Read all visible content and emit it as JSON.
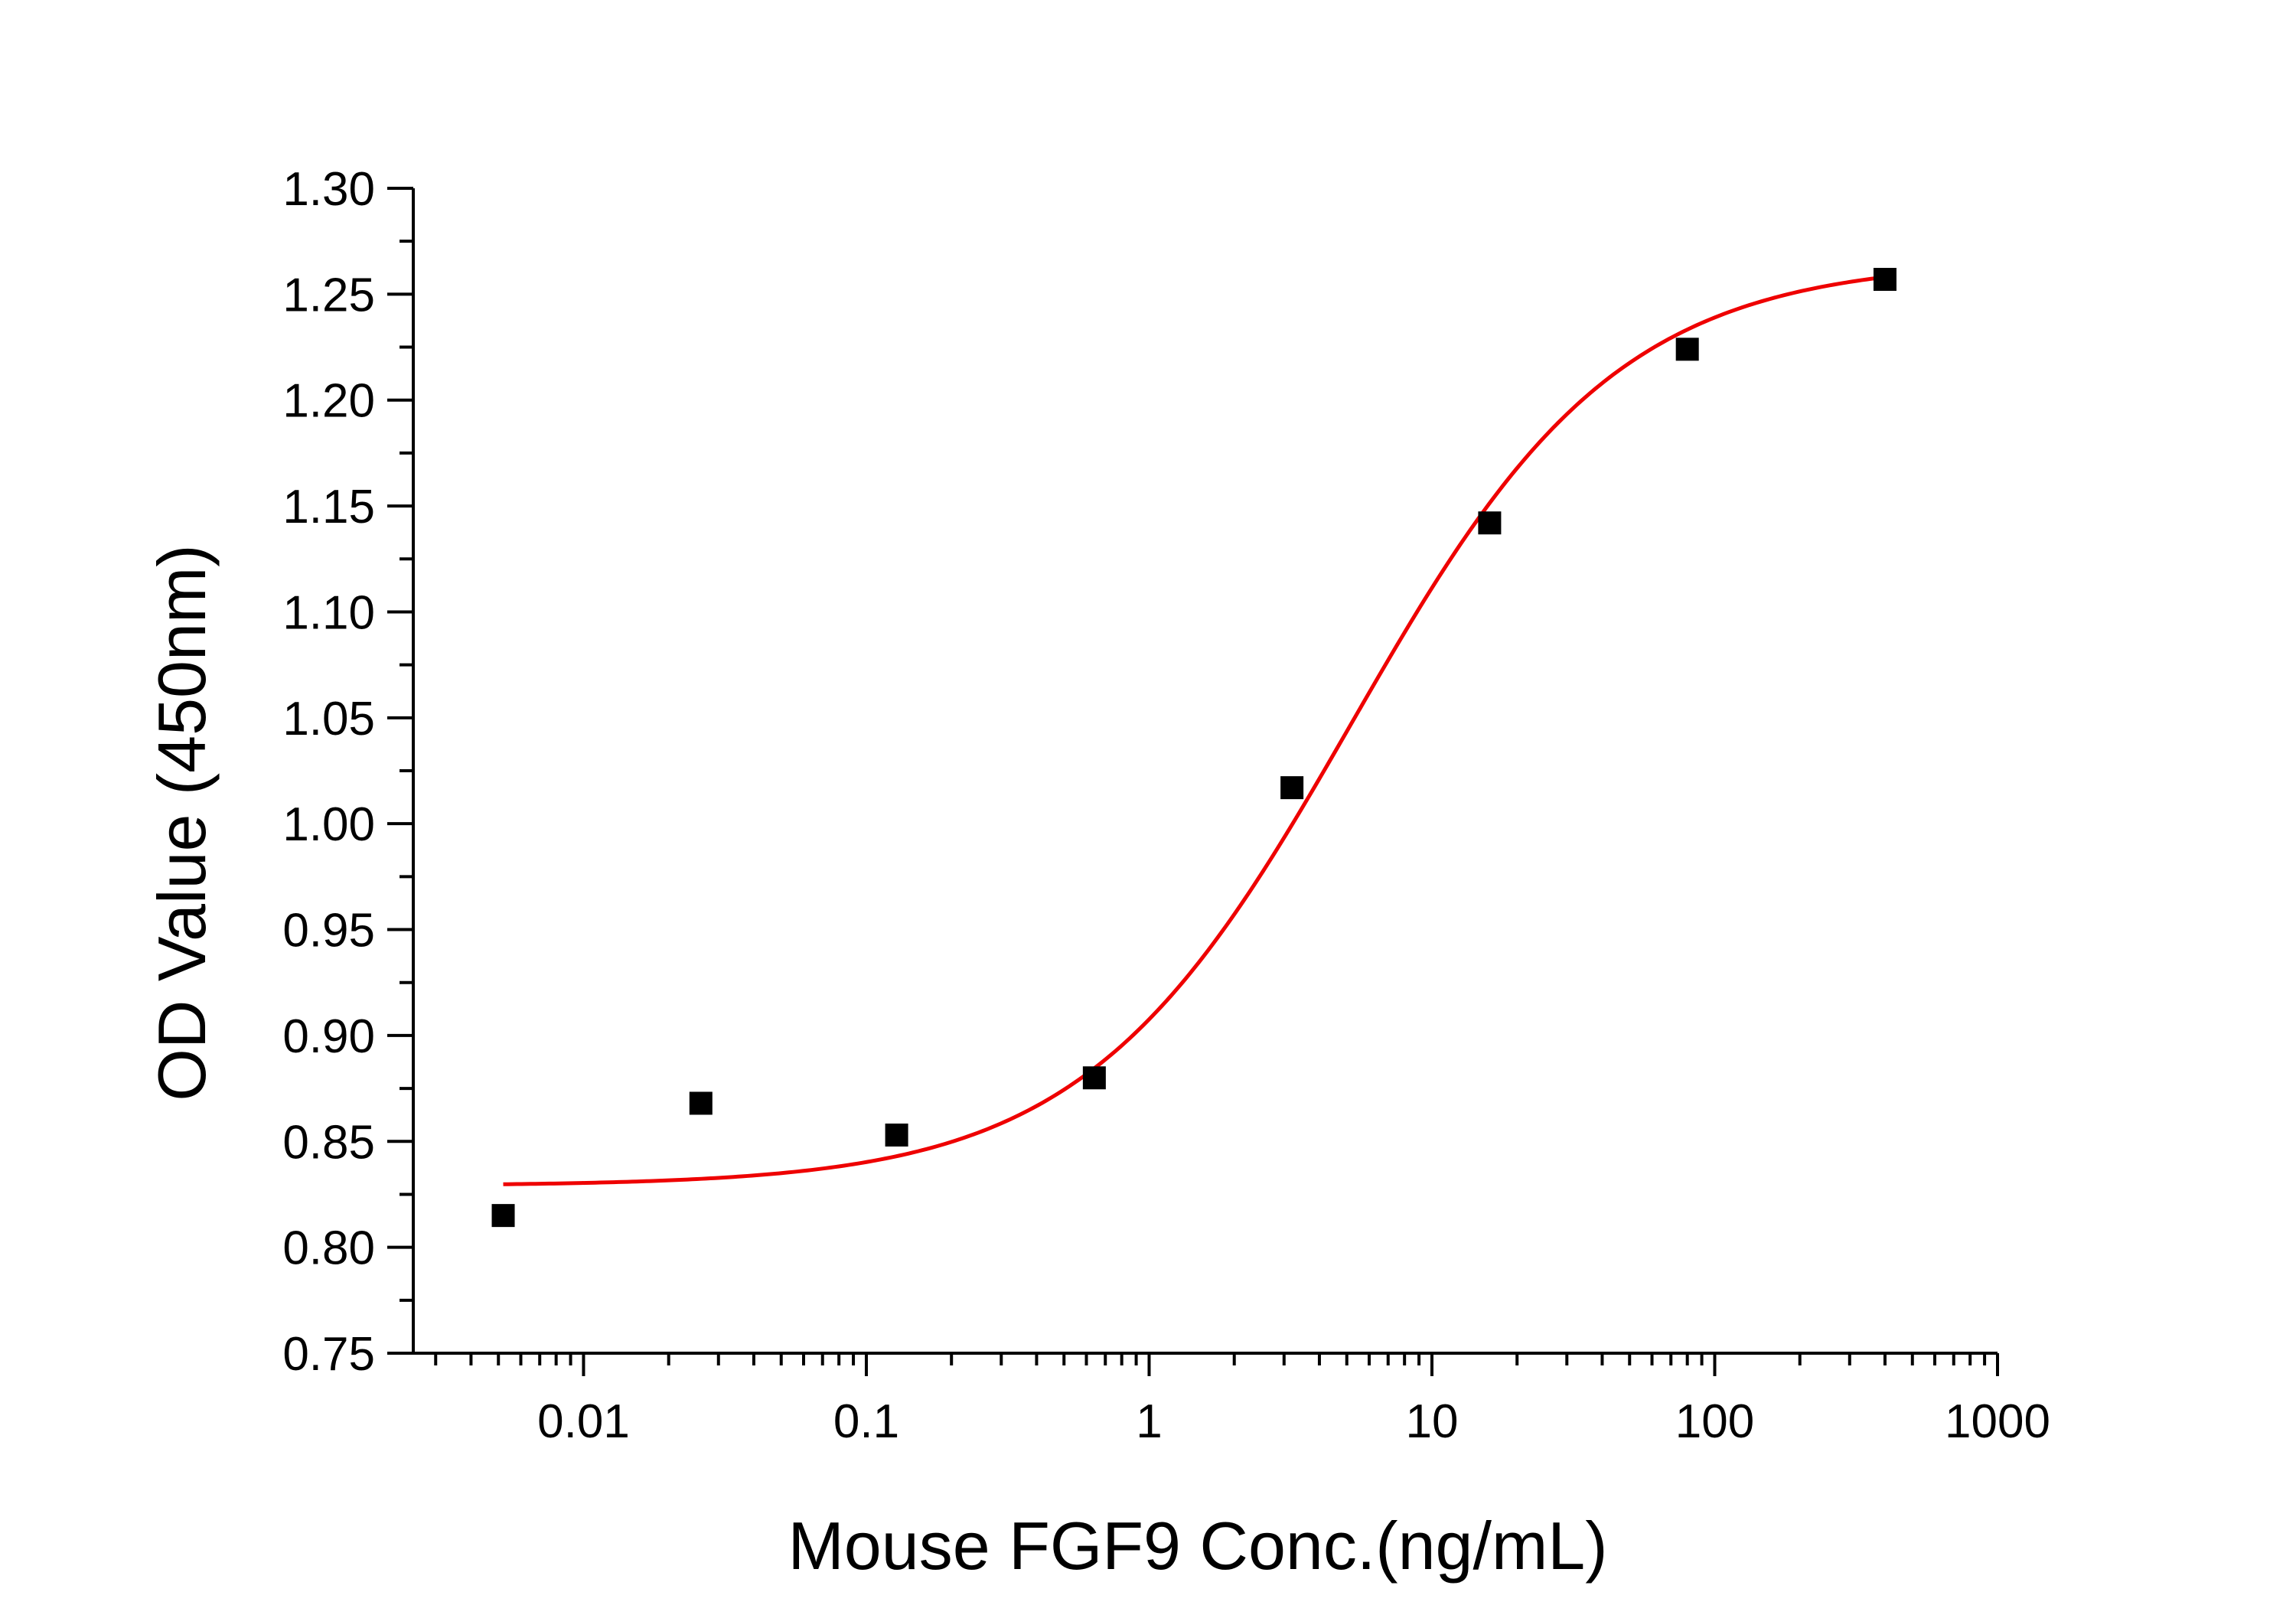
{
  "chart_data": {
    "type": "scatter",
    "title": "",
    "xlabel": "Mouse FGF9 Conc.(ng/mL)",
    "ylabel": "OD Value (450nm)",
    "x_scale": "log",
    "xlim": [
      0.0025,
      1000
    ],
    "ylim": [
      0.75,
      1.3
    ],
    "x_ticks": [
      {
        "value": 0.01,
        "label": "0.01"
      },
      {
        "value": 0.1,
        "label": "0.1"
      },
      {
        "value": 1,
        "label": "1"
      },
      {
        "value": 10,
        "label": "10"
      },
      {
        "value": 100,
        "label": "100"
      },
      {
        "value": 1000,
        "label": "1000"
      }
    ],
    "y_ticks": [
      {
        "value": 0.75,
        "label": "0.75"
      },
      {
        "value": 0.8,
        "label": "0.80"
      },
      {
        "value": 0.85,
        "label": "0.85"
      },
      {
        "value": 0.9,
        "label": "0.90"
      },
      {
        "value": 0.95,
        "label": "0.95"
      },
      {
        "value": 1.0,
        "label": "1.00"
      },
      {
        "value": 1.05,
        "label": "1.05"
      },
      {
        "value": 1.1,
        "label": "1.10"
      },
      {
        "value": 1.15,
        "label": "1.15"
      },
      {
        "value": 1.2,
        "label": "1.20"
      },
      {
        "value": 1.25,
        "label": "1.25"
      },
      {
        "value": 1.3,
        "label": "1.30"
      }
    ],
    "series": [
      {
        "name": "data",
        "marker": "square",
        "color": "#000000",
        "x": [
          0.0052,
          0.026,
          0.128,
          0.64,
          3.2,
          16,
          80,
          400
        ],
        "y": [
          0.815,
          0.868,
          0.853,
          0.88,
          1.017,
          1.142,
          1.224,
          1.257
        ]
      },
      {
        "name": "fit",
        "line": true,
        "color": "#ee0000",
        "x_range": [
          0.0052,
          400
        ],
        "model": "4PL",
        "params": {
          "bottom": 0.829,
          "top": 1.266,
          "ec50": 5.2,
          "hill": 0.92
        }
      }
    ],
    "grid": false,
    "legend": "none"
  }
}
